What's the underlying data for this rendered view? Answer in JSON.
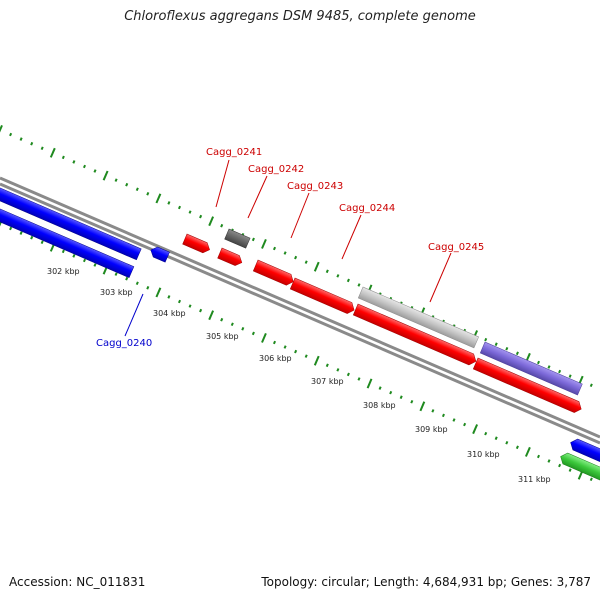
{
  "title": "Chloroflexus aggregans DSM 9485, complete genome",
  "footer": {
    "accession": "Accession: NC_011831",
    "stats": "Topology: circular; Length: 4,684,931 bp; Genes: 3,787"
  },
  "colors": {
    "backbone": "#8a8a8a",
    "tick": "#1f8a1f",
    "cds_forward": "#ff0000",
    "cds_reverse": "#0000ff",
    "gene_gray_dark": "#666666",
    "gene_gray_light": "#c4c4c4",
    "gene_purple": "#7b68d8",
    "gene_green": "#3cc83c",
    "label_forward": "#cc0000",
    "label_reverse": "#0000cc",
    "kbp_label": "#222222"
  },
  "scale_labels": [
    "302 kbp",
    "303 kbp",
    "304 kbp",
    "305 kbp",
    "306 kbp",
    "307 kbp",
    "308 kbp",
    "309 kbp",
    "310 kbp",
    "311 kbp"
  ],
  "gene_labels": [
    {
      "text": "Cagg_0241",
      "strand": "forward"
    },
    {
      "text": "Cagg_0242",
      "strand": "forward"
    },
    {
      "text": "Cagg_0243",
      "strand": "forward"
    },
    {
      "text": "Cagg_0244",
      "strand": "forward"
    },
    {
      "text": "Cagg_0245",
      "strand": "forward"
    },
    {
      "text": "Cagg_0240",
      "strand": "reverse"
    }
  ]
}
